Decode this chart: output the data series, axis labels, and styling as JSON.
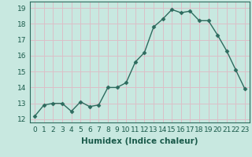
{
  "x": [
    0,
    1,
    2,
    3,
    4,
    5,
    6,
    7,
    8,
    9,
    10,
    11,
    12,
    13,
    14,
    15,
    16,
    17,
    18,
    19,
    20,
    21,
    22,
    23
  ],
  "y": [
    12.2,
    12.9,
    13.0,
    13.0,
    12.5,
    13.1,
    12.8,
    12.9,
    14.0,
    14.0,
    14.3,
    15.6,
    16.2,
    17.8,
    18.3,
    18.9,
    18.7,
    18.8,
    18.2,
    18.2,
    17.3,
    16.3,
    15.1,
    13.9
  ],
  "line_color": "#2d6b5e",
  "marker": "D",
  "marker_size": 2.5,
  "bg_color": "#c8e8e0",
  "plot_bg_color": "#c8e8e0",
  "grid_color_major": "#e8c8d0",
  "grid_color_minor": "#c8e8e0",
  "xlabel": "Humidex (Indice chaleur)",
  "xlim": [
    -0.5,
    23.5
  ],
  "ylim": [
    11.8,
    19.4
  ],
  "yticks": [
    12,
    13,
    14,
    15,
    16,
    17,
    18,
    19
  ],
  "xticks": [
    0,
    1,
    2,
    3,
    4,
    5,
    6,
    7,
    8,
    9,
    10,
    11,
    12,
    13,
    14,
    15,
    16,
    17,
    18,
    19,
    20,
    21,
    22,
    23
  ],
  "xtick_labels": [
    "0",
    "1",
    "2",
    "3",
    "4",
    "5",
    "6",
    "7",
    "8",
    "9",
    "10",
    "11",
    "12",
    "13",
    "14",
    "15",
    "16",
    "17",
    "18",
    "19",
    "20",
    "21",
    "22",
    "23"
  ],
  "font_color": "#1a5a4a",
  "label_fontsize": 7.5,
  "tick_fontsize": 6.5
}
